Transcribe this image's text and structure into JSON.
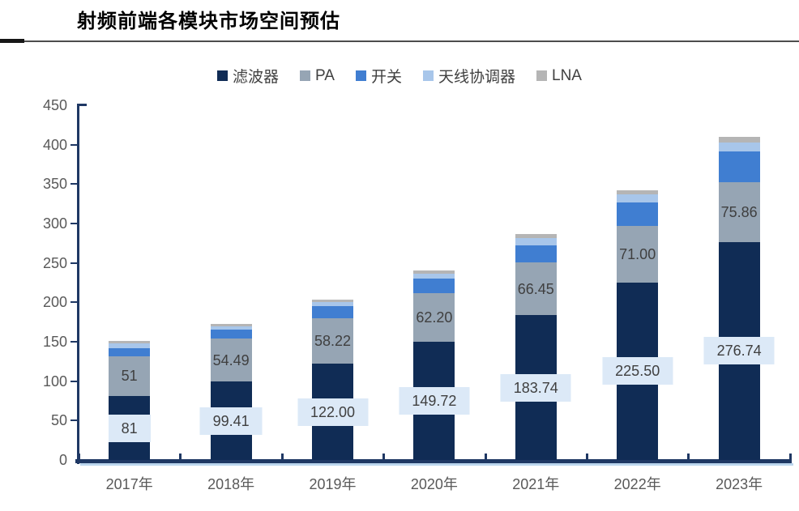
{
  "header": {
    "title": "射频前端各模块市场空间预估"
  },
  "chart_data": {
    "type": "bar",
    "stacked": true,
    "title": "射频前端各模块市场空间预估",
    "xlabel": "",
    "ylabel": "",
    "ylim": [
      0,
      450
    ],
    "ytick_step": 50,
    "grid": false,
    "legend_position": "top",
    "categories": [
      "2017年",
      "2018年",
      "2019年",
      "2020年",
      "2021年",
      "2022年",
      "2023年"
    ],
    "series": [
      {
        "id": "filter",
        "name": "滤波器",
        "color": "#102c55",
        "values": [
          81,
          99.41,
          122.0,
          149.72,
          183.74,
          225.5,
          276.74
        ],
        "labels": [
          "81",
          "99.41",
          "122.00",
          "149.72",
          "183.74",
          "225.50",
          "276.74"
        ],
        "label_style": "boxed"
      },
      {
        "id": "pa",
        "name": "PA",
        "color": "#96a5b4",
        "values": [
          51,
          54.49,
          58.22,
          62.2,
          66.45,
          71.0,
          75.86
        ],
        "labels": [
          "51",
          "54.49",
          "58.22",
          "62.20",
          "66.45",
          "71.00",
          "75.86"
        ],
        "label_style": "plain"
      },
      {
        "id": "switch",
        "name": "开关",
        "color": "#407ed1",
        "values": [
          10,
          11,
          15,
          18,
          22,
          30,
          39
        ]
      },
      {
        "id": "antenna-tuner",
        "name": "天线协调器",
        "color": "#a8c6ea",
        "values": [
          6,
          5,
          5,
          6,
          9,
          10,
          11
        ]
      },
      {
        "id": "lna",
        "name": "LNA",
        "color": "#b5b5b5",
        "values": [
          3,
          3,
          3,
          4,
          5,
          6,
          7
        ]
      }
    ],
    "colors": {
      "axis": "#1f3864",
      "axis_shadow": "#bcd6ee",
      "tick_label": "#595959",
      "value_label": "#3f3f3f",
      "value_label_box_bg": "#dce9f7"
    }
  }
}
